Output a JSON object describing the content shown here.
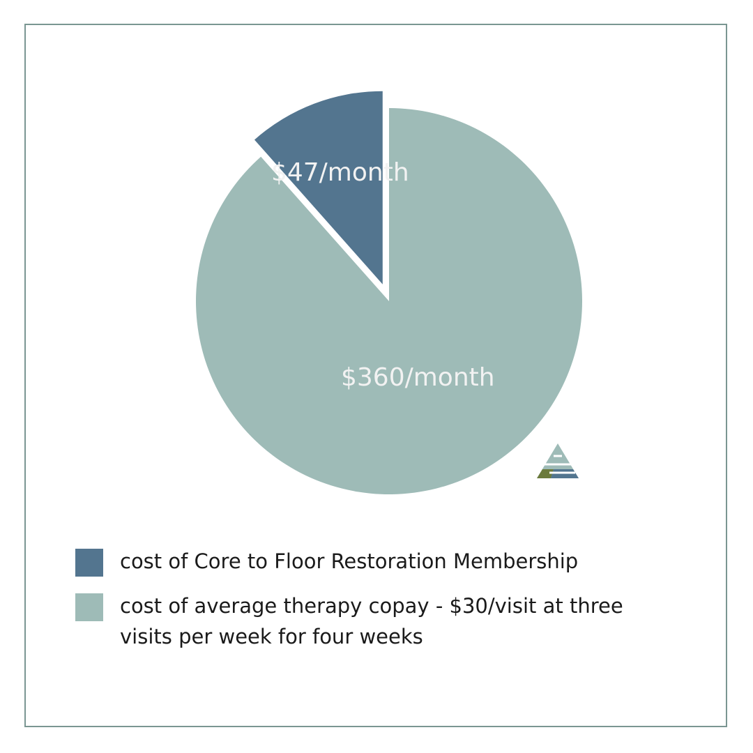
{
  "colors": {
    "membership": "#53758f",
    "copay": "#9ebbb7",
    "frame": "#7a9692",
    "label_text": "#f2f2f2"
  },
  "chart_data": {
    "type": "pie",
    "title": "",
    "slices": [
      {
        "value": 47,
        "label": "$47/month",
        "legend": "cost of Core to Floor Restoration Membership",
        "color": "#53758f",
        "exploded": true
      },
      {
        "value": 360,
        "label": "$360/month",
        "legend": "cost of average therapy copay - $30/visit at three visits per week for four weeks",
        "color": "#9ebbb7",
        "exploded": false
      }
    ],
    "start": "12 o'clock",
    "direction": "counterclockwise for small slice",
    "legend_placement": "bottom"
  },
  "logo": {
    "icon": "core-to-floor-triangle-logo"
  }
}
